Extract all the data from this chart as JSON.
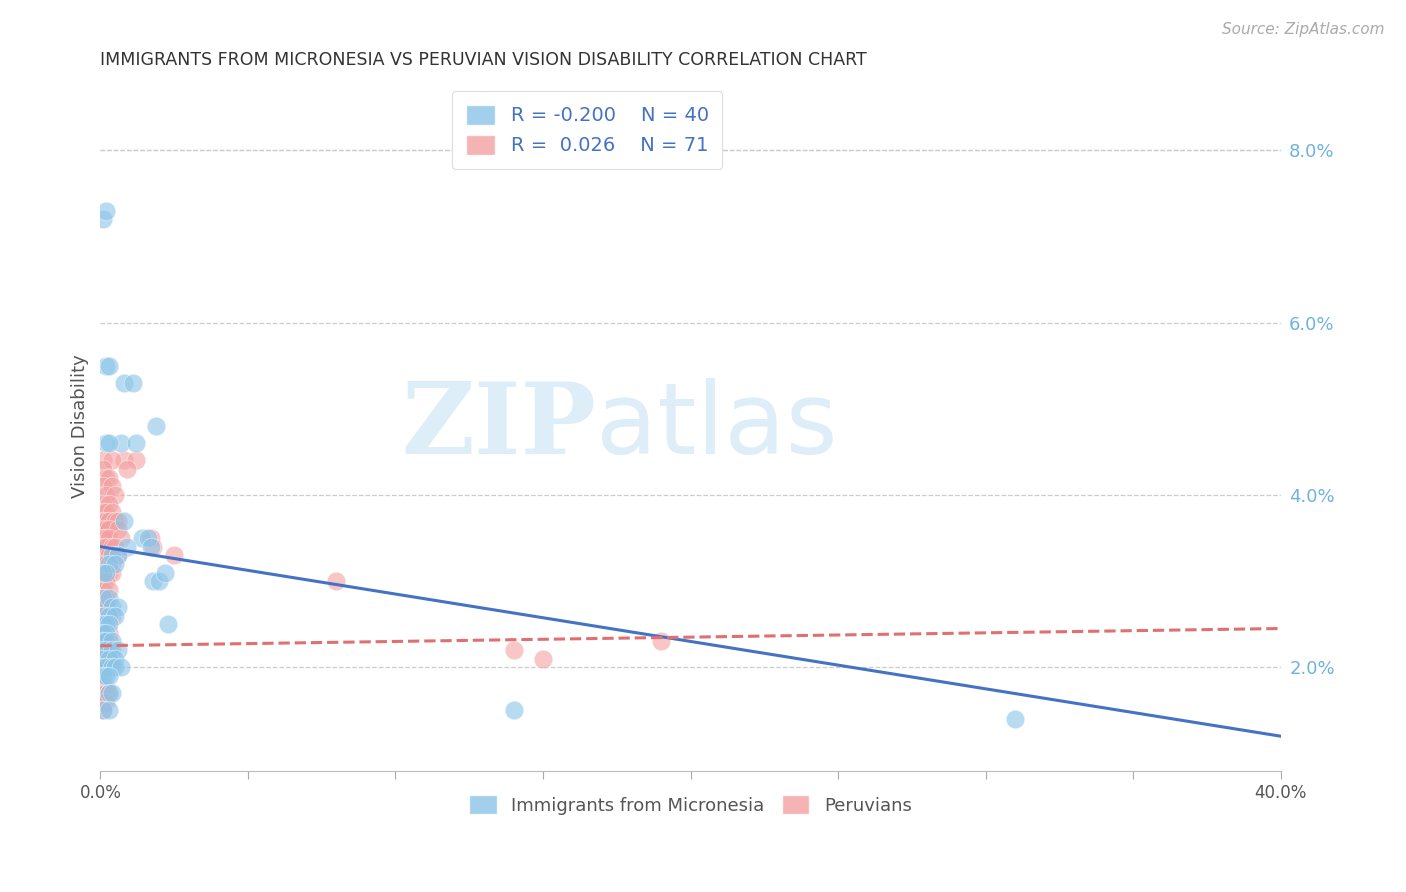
{
  "title": "IMMIGRANTS FROM MICRONESIA VS PERUVIAN VISION DISABILITY CORRELATION CHART",
  "source": "Source: ZipAtlas.com",
  "ylabel": "Vision Disability",
  "right_yticks": [
    "8.0%",
    "6.0%",
    "4.0%",
    "2.0%"
  ],
  "right_ytick_vals": [
    0.08,
    0.06,
    0.04,
    0.02
  ],
  "xlim": [
    0.0,
    0.4
  ],
  "ylim": [
    0.008,
    0.088
  ],
  "color_blue": "#8ac4e8",
  "color_pink": "#f4a0a0",
  "line_blue": "#4472c4",
  "line_pink": "#e07070",
  "watermark_zip": "ZIP",
  "watermark_atlas": "atlas",
  "watermark_color": "#ddeef8",
  "blue_scatter": [
    [
      0.001,
      0.072
    ],
    [
      0.002,
      0.073
    ],
    [
      0.008,
      0.053
    ],
    [
      0.011,
      0.053
    ],
    [
      0.002,
      0.055
    ],
    [
      0.003,
      0.055
    ],
    [
      0.019,
      0.048
    ],
    [
      0.007,
      0.046
    ],
    [
      0.012,
      0.046
    ],
    [
      0.002,
      0.046
    ],
    [
      0.003,
      0.046
    ],
    [
      0.008,
      0.037
    ],
    [
      0.014,
      0.035
    ],
    [
      0.016,
      0.035
    ],
    [
      0.009,
      0.034
    ],
    [
      0.017,
      0.034
    ],
    [
      0.004,
      0.033
    ],
    [
      0.006,
      0.033
    ],
    [
      0.003,
      0.032
    ],
    [
      0.005,
      0.032
    ],
    [
      0.018,
      0.03
    ],
    [
      0.02,
      0.03
    ],
    [
      0.001,
      0.031
    ],
    [
      0.002,
      0.031
    ],
    [
      0.022,
      0.031
    ],
    [
      0.001,
      0.028
    ],
    [
      0.003,
      0.028
    ],
    [
      0.004,
      0.027
    ],
    [
      0.006,
      0.027
    ],
    [
      0.001,
      0.026
    ],
    [
      0.003,
      0.026
    ],
    [
      0.005,
      0.026
    ],
    [
      0.023,
      0.025
    ],
    [
      0.001,
      0.025
    ],
    [
      0.002,
      0.025
    ],
    [
      0.003,
      0.025
    ],
    [
      0.001,
      0.024
    ],
    [
      0.002,
      0.024
    ],
    [
      0.001,
      0.023
    ],
    [
      0.002,
      0.023
    ],
    [
      0.004,
      0.023
    ],
    [
      0.001,
      0.022
    ],
    [
      0.002,
      0.022
    ],
    [
      0.004,
      0.022
    ],
    [
      0.006,
      0.022
    ],
    [
      0.001,
      0.021
    ],
    [
      0.003,
      0.021
    ],
    [
      0.005,
      0.021
    ],
    [
      0.001,
      0.02
    ],
    [
      0.002,
      0.02
    ],
    [
      0.004,
      0.02
    ],
    [
      0.005,
      0.02
    ],
    [
      0.007,
      0.02
    ],
    [
      0.001,
      0.019
    ],
    [
      0.002,
      0.019
    ],
    [
      0.003,
      0.019
    ],
    [
      0.003,
      0.017
    ],
    [
      0.004,
      0.017
    ],
    [
      0.001,
      0.015
    ],
    [
      0.003,
      0.015
    ],
    [
      0.14,
      0.015
    ],
    [
      0.31,
      0.014
    ]
  ],
  "pink_scatter": [
    [
      0.008,
      0.044
    ],
    [
      0.012,
      0.044
    ],
    [
      0.001,
      0.044
    ],
    [
      0.004,
      0.044
    ],
    [
      0.001,
      0.043
    ],
    [
      0.009,
      0.043
    ],
    [
      0.002,
      0.042
    ],
    [
      0.003,
      0.042
    ],
    [
      0.001,
      0.041
    ],
    [
      0.004,
      0.041
    ],
    [
      0.002,
      0.04
    ],
    [
      0.005,
      0.04
    ],
    [
      0.001,
      0.039
    ],
    [
      0.003,
      0.039
    ],
    [
      0.001,
      0.038
    ],
    [
      0.002,
      0.038
    ],
    [
      0.004,
      0.038
    ],
    [
      0.001,
      0.037
    ],
    [
      0.002,
      0.037
    ],
    [
      0.003,
      0.037
    ],
    [
      0.005,
      0.037
    ],
    [
      0.006,
      0.037
    ],
    [
      0.017,
      0.035
    ],
    [
      0.018,
      0.034
    ],
    [
      0.001,
      0.036
    ],
    [
      0.002,
      0.036
    ],
    [
      0.003,
      0.036
    ],
    [
      0.006,
      0.036
    ],
    [
      0.001,
      0.035
    ],
    [
      0.002,
      0.035
    ],
    [
      0.003,
      0.035
    ],
    [
      0.007,
      0.035
    ],
    [
      0.001,
      0.034
    ],
    [
      0.002,
      0.034
    ],
    [
      0.004,
      0.034
    ],
    [
      0.005,
      0.034
    ],
    [
      0.001,
      0.033
    ],
    [
      0.002,
      0.033
    ],
    [
      0.003,
      0.033
    ],
    [
      0.006,
      0.033
    ],
    [
      0.025,
      0.033
    ],
    [
      0.001,
      0.032
    ],
    [
      0.002,
      0.032
    ],
    [
      0.004,
      0.032
    ],
    [
      0.001,
      0.031
    ],
    [
      0.003,
      0.031
    ],
    [
      0.004,
      0.031
    ],
    [
      0.001,
      0.03
    ],
    [
      0.002,
      0.03
    ],
    [
      0.08,
      0.03
    ],
    [
      0.001,
      0.029
    ],
    [
      0.003,
      0.029
    ],
    [
      0.001,
      0.028
    ],
    [
      0.002,
      0.028
    ],
    [
      0.001,
      0.027
    ],
    [
      0.002,
      0.027
    ],
    [
      0.001,
      0.026
    ],
    [
      0.004,
      0.026
    ],
    [
      0.001,
      0.025
    ],
    [
      0.001,
      0.024
    ],
    [
      0.003,
      0.024
    ],
    [
      0.001,
      0.023
    ],
    [
      0.002,
      0.023
    ],
    [
      0.003,
      0.023
    ],
    [
      0.001,
      0.022
    ],
    [
      0.003,
      0.022
    ],
    [
      0.14,
      0.022
    ],
    [
      0.001,
      0.021
    ],
    [
      0.002,
      0.021
    ],
    [
      0.15,
      0.021
    ],
    [
      0.19,
      0.023
    ],
    [
      0.001,
      0.018
    ],
    [
      0.001,
      0.017
    ],
    [
      0.002,
      0.017
    ],
    [
      0.003,
      0.017
    ],
    [
      0.001,
      0.016
    ],
    [
      0.002,
      0.016
    ],
    [
      0.001,
      0.015
    ]
  ],
  "blue_line_x": [
    0.0,
    0.4
  ],
  "blue_line_y": [
    0.034,
    0.012
  ],
  "pink_line_x": [
    0.0,
    0.4
  ],
  "pink_line_y": [
    0.0225,
    0.0245
  ]
}
